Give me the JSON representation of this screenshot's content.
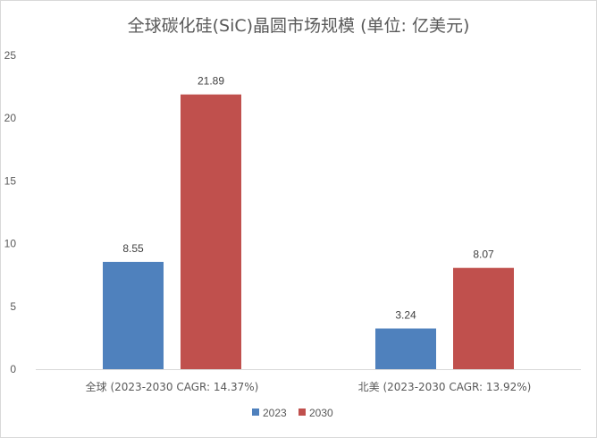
{
  "chart_data": {
    "type": "bar",
    "title": "全球碳化硅(SiC)晶圆市场规模 (单位: 亿美元)",
    "categories": [
      "全球 (2023-2030 CAGR: 14.37%)",
      "北美 (2023-2030 CAGR: 13.92%)"
    ],
    "series": [
      {
        "name": "2023",
        "values": [
          8.55,
          3.24
        ],
        "labels": [
          "8.55",
          "3.24"
        ],
        "color": "#4f81bd"
      },
      {
        "name": "2030",
        "values": [
          21.89,
          8.07
        ],
        "labels": [
          "21.89",
          "8.07"
        ],
        "color": "#c0504d"
      }
    ],
    "xlabel": "",
    "ylabel": "",
    "ylim": [
      0,
      25
    ],
    "yticks": [
      0,
      5,
      10,
      15,
      20,
      25
    ],
    "grid": false,
    "legend": "bottom"
  }
}
